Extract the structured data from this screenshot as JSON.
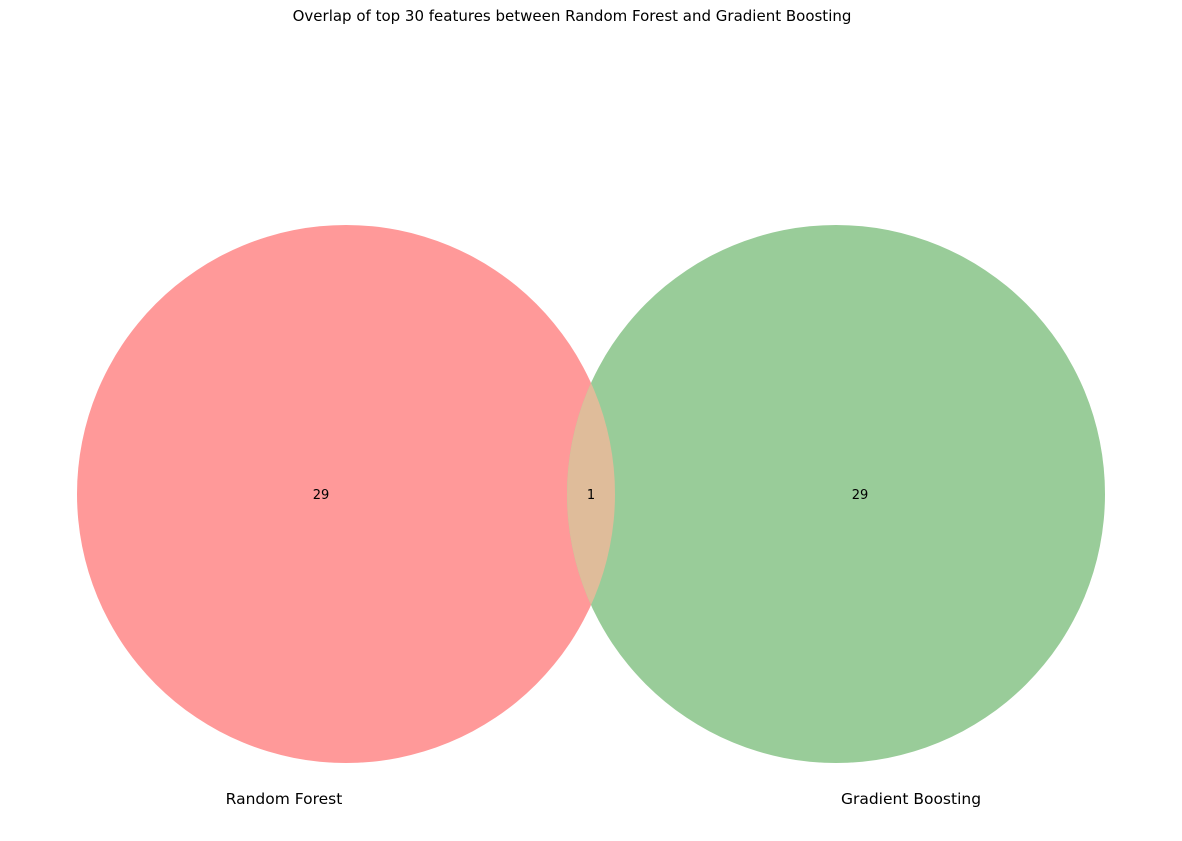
{
  "title": "Overlap of top 30 features between Random Forest and Gradient Boosting",
  "chart_data": {
    "type": "venn",
    "title": "Overlap of top 30 features between Random Forest and Gradient Boosting",
    "sets": [
      {
        "name": "Random Forest",
        "only_count": "29",
        "color": "#ff9999"
      },
      {
        "name": "Gradient Boosting",
        "only_count": "29",
        "color": "#99cc99"
      }
    ],
    "intersection": {
      "count": "1",
      "color": "#dfbc9a"
    }
  }
}
